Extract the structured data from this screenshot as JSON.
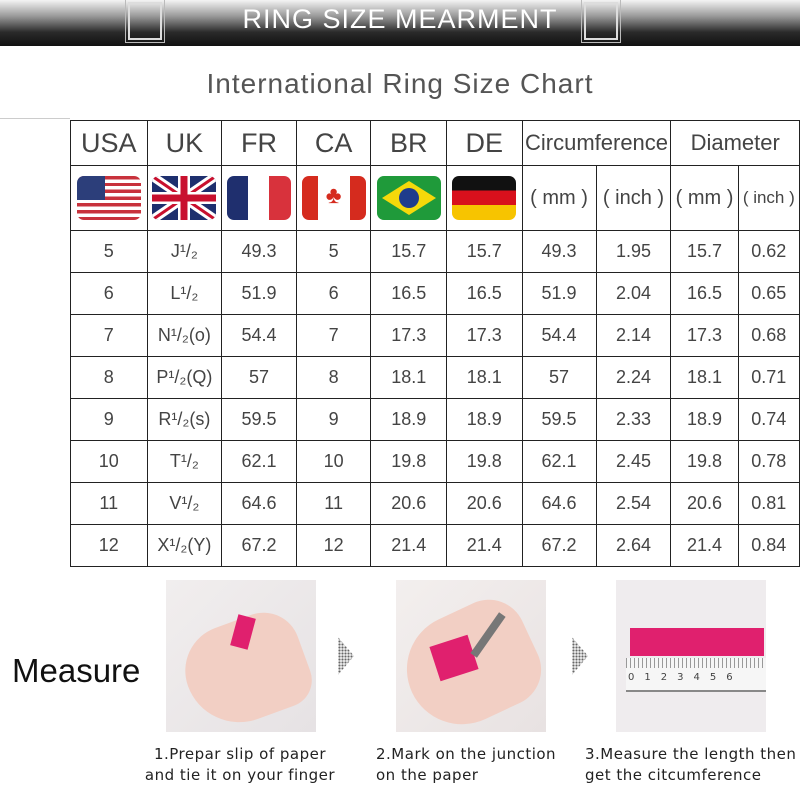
{
  "banner": {
    "title": "RING SIZE MEARMENT"
  },
  "subtitle": "International Ring Size Chart",
  "table": {
    "headers": [
      "USA",
      "UK",
      "FR",
      "CA",
      "BR",
      "DE",
      "Circumference",
      "Diameter"
    ],
    "flags": [
      "us-flag-icon",
      "uk-flag-icon",
      "france-flag-icon",
      "canada-flag-icon",
      "brazil-flag-icon",
      "germany-flag-icon"
    ],
    "units": [
      "( mm )",
      "( inch )",
      "( mm )",
      "( inch )"
    ],
    "rows": [
      [
        "5",
        "J¹/₂",
        "49.3",
        "5",
        "15.7",
        "15.7",
        "49.3",
        "1.95",
        "15.7",
        "0.62"
      ],
      [
        "6",
        "L¹/₂",
        "51.9",
        "6",
        "16.5",
        "16.5",
        "51.9",
        "2.04",
        "16.5",
        "0.65"
      ],
      [
        "7",
        "N¹/₂(o)",
        "54.4",
        "7",
        "17.3",
        "17.3",
        "54.4",
        "2.14",
        "17.3",
        "0.68"
      ],
      [
        "8",
        "P¹/₂(Q)",
        "57",
        "8",
        "18.1",
        "18.1",
        "57",
        "2.24",
        "18.1",
        "0.71"
      ],
      [
        "9",
        "R¹/₂(s)",
        "59.5",
        "9",
        "18.9",
        "18.9",
        "59.5",
        "2.33",
        "18.9",
        "0.74"
      ],
      [
        "10",
        "T¹/₂",
        "62.1",
        "10",
        "19.8",
        "19.8",
        "62.1",
        "2.45",
        "19.8",
        "0.78"
      ],
      [
        "11",
        "V¹/₂",
        "64.6",
        "11",
        "20.6",
        "20.6",
        "64.6",
        "2.54",
        "20.6",
        "0.81"
      ],
      [
        "12",
        "X¹/₂(Y)",
        "67.2",
        "12",
        "21.4",
        "21.4",
        "67.2",
        "2.64",
        "21.4",
        "0.84"
      ]
    ]
  },
  "measure": {
    "label": "Measure",
    "steps": [
      {
        "line1": "1.Prepar slip of paper",
        "line2": "and tie it on your finger"
      },
      {
        "line1": "2.Mark on the junction",
        "line2": "on the paper"
      },
      {
        "line1": "3.Measure the length then",
        "line2": "get the citcumference"
      }
    ],
    "ruler_ticks": [
      "0",
      "1",
      "2",
      "3",
      "4",
      "5",
      "6"
    ]
  },
  "colors": {
    "accent_pink": "#e0206e"
  }
}
